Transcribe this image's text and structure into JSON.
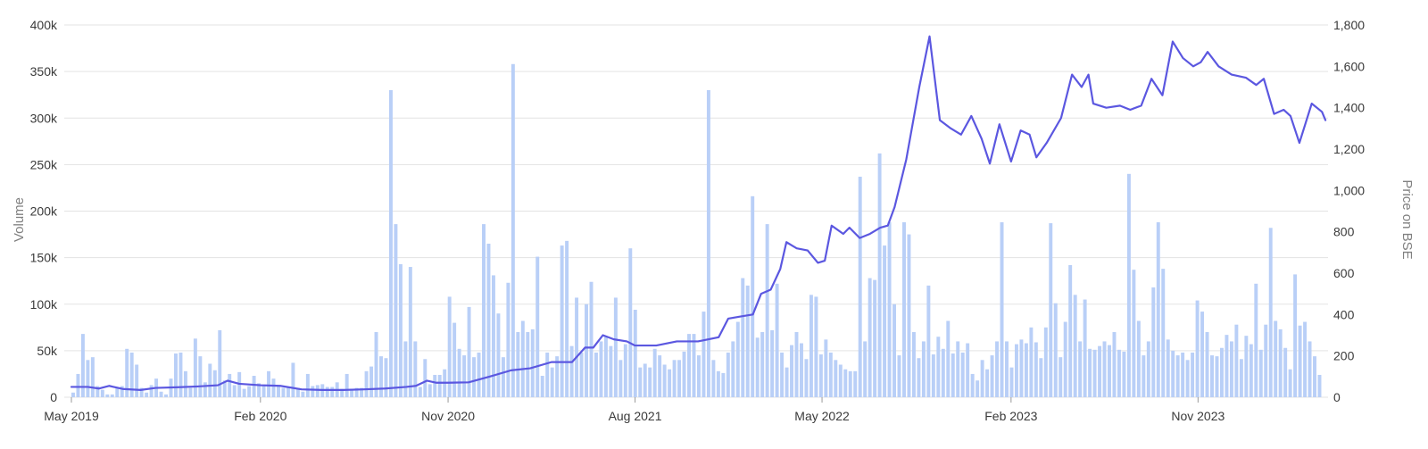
{
  "chart_data": {
    "type": "bar+line",
    "title": "",
    "colors": {
      "volume_bar": "#b9cff7",
      "price_line": "#5b57e0",
      "grid": "#e3e3e3",
      "tick_text": "#3a3a3a",
      "axis_title": "#808080"
    },
    "y_left": {
      "label": "Volume",
      "min": 0,
      "max": 400000,
      "ticks": [
        0,
        50000,
        100000,
        150000,
        200000,
        250000,
        300000,
        350000,
        400000
      ],
      "tick_labels": [
        "0",
        "50k",
        "100k",
        "150k",
        "200k",
        "250k",
        "300k",
        "350k",
        "400k"
      ]
    },
    "y_right": {
      "label": "Price on BSE",
      "min": 0,
      "max": 1800,
      "ticks": [
        0,
        200,
        400,
        600,
        800,
        1000,
        1200,
        1400,
        1600,
        1800
      ],
      "tick_labels": [
        "0",
        "200",
        "400",
        "600",
        "800",
        "1,000",
        "1,200",
        "1,400",
        "1,600",
        "1,800"
      ]
    },
    "x_axis": {
      "start": "2019-05",
      "end": "2024-05",
      "ticks": [
        "2019-05",
        "2020-02",
        "2020-11",
        "2021-08",
        "2022-05",
        "2023-02",
        "2023-11"
      ],
      "tick_labels": [
        "May 2019",
        "Feb 2020",
        "Nov 2020",
        "Aug 2021",
        "May 2022",
        "Feb 2023",
        "Nov 2023"
      ]
    },
    "series": [
      {
        "type": "bar",
        "axis": "left",
        "unit": "weekly",
        "values": [
          5000,
          25000,
          68000,
          40000,
          43000,
          12000,
          8000,
          3000,
          3000,
          10000,
          12000,
          52000,
          48000,
          35000,
          10000,
          5000,
          13000,
          20000,
          6000,
          3000,
          20000,
          47000,
          48000,
          28000,
          10000,
          63000,
          44000,
          16000,
          36000,
          29000,
          72000,
          18000,
          25000,
          13000,
          27000,
          9000,
          12000,
          23000,
          15000,
          12000,
          28000,
          20000,
          13000,
          10000,
          10000,
          37000,
          10000,
          6000,
          25000,
          12000,
          13000,
          14000,
          11000,
          11000,
          16000,
          9000,
          25000,
          9000,
          10000,
          10000,
          28000,
          33000,
          70000,
          44000,
          42000,
          330000,
          186000,
          143000,
          60000,
          140000,
          60000,
          11000,
          41000,
          14000,
          24000,
          24000,
          30000,
          108000,
          80000,
          52000,
          45000,
          97000,
          43000,
          48000,
          186000,
          165000,
          131000,
          90000,
          43000,
          123000,
          358000,
          70000,
          82000,
          70000,
          73000,
          151000,
          23000,
          48000,
          32000,
          44000,
          163000,
          168000,
          55000,
          107000,
          48000,
          100000,
          124000,
          48000,
          60000,
          65000,
          55000,
          107000,
          40000,
          57000,
          160000,
          94000,
          32000,
          36000,
          32000,
          52000,
          45000,
          35000,
          30000,
          40000,
          40000,
          49000,
          68000,
          68000,
          45000,
          92000,
          330000,
          40000,
          28000,
          26000,
          48000,
          60000,
          81000,
          128000,
          120000,
          216000,
          64000,
          70000,
          186000,
          72000,
          122000,
          48000,
          32000,
          56000,
          70000,
          58000,
          41000,
          110000,
          108000,
          46000,
          62000,
          48000,
          40000,
          35000,
          30000,
          28000,
          28000,
          237000,
          60000,
          128000,
          126000,
          262000,
          163000,
          188000,
          100000,
          45000,
          188000,
          175000,
          70000,
          42000,
          60000,
          120000,
          46000,
          65000,
          52000,
          82000,
          47000,
          60000,
          48000,
          58000,
          25000,
          18000,
          40000,
          30000,
          45000,
          60000,
          188000,
          60000,
          32000,
          57000,
          62000,
          58000,
          75000,
          59000,
          42000,
          75000,
          187000,
          101000,
          43000,
          81000,
          142000,
          110000,
          60000,
          105000,
          52000,
          51000,
          55000,
          60000,
          56000,
          70000,
          51000,
          49000,
          240000,
          137000,
          82000,
          45000,
          60000,
          118000,
          188000,
          138000,
          62000,
          50000,
          45000,
          48000,
          40000,
          48000,
          104000,
          92000,
          70000,
          45000,
          44000,
          53000,
          67000,
          60000,
          78000,
          41000,
          66000,
          57000,
          122000,
          51000,
          78000,
          182000,
          82000,
          73000,
          53000,
          30000,
          132000,
          77000,
          81000,
          60000,
          44000,
          24000
        ]
      },
      {
        "type": "line",
        "axis": "right",
        "points": [
          [
            "2019-05-01",
            50
          ],
          [
            "2019-05-25",
            50
          ],
          [
            "2019-06-10",
            42
          ],
          [
            "2019-06-25",
            55
          ],
          [
            "2019-07-15",
            40
          ],
          [
            "2019-08-10",
            35
          ],
          [
            "2019-09-01",
            45
          ],
          [
            "2019-10-01",
            48
          ],
          [
            "2019-11-01",
            52
          ],
          [
            "2019-12-01",
            58
          ],
          [
            "2019-12-15",
            80
          ],
          [
            "2020-01-01",
            65
          ],
          [
            "2020-02-01",
            58
          ],
          [
            "2020-03-01",
            55
          ],
          [
            "2020-04-01",
            38
          ],
          [
            "2020-05-01",
            35
          ],
          [
            "2020-06-01",
            35
          ],
          [
            "2020-07-01",
            38
          ],
          [
            "2020-08-01",
            42
          ],
          [
            "2020-09-01",
            50
          ],
          [
            "2020-09-15",
            55
          ],
          [
            "2020-10-01",
            80
          ],
          [
            "2020-10-15",
            70
          ],
          [
            "2020-11-01",
            70
          ],
          [
            "2020-12-01",
            72
          ],
          [
            "2021-01-01",
            100
          ],
          [
            "2021-02-01",
            130
          ],
          [
            "2021-03-01",
            140
          ],
          [
            "2021-04-01",
            170
          ],
          [
            "2021-05-01",
            170
          ],
          [
            "2021-05-20",
            240
          ],
          [
            "2021-06-01",
            240
          ],
          [
            "2021-06-15",
            300
          ],
          [
            "2021-07-01",
            280
          ],
          [
            "2021-07-20",
            270
          ],
          [
            "2021-08-01",
            250
          ],
          [
            "2021-09-01",
            250
          ],
          [
            "2021-10-01",
            270
          ],
          [
            "2021-11-01",
            270
          ],
          [
            "2021-12-01",
            290
          ],
          [
            "2021-12-15",
            380
          ],
          [
            "2022-01-01",
            390
          ],
          [
            "2022-01-20",
            400
          ],
          [
            "2022-02-01",
            500
          ],
          [
            "2022-02-15",
            520
          ],
          [
            "2022-03-01",
            620
          ],
          [
            "2022-03-10",
            750
          ],
          [
            "2022-03-25",
            720
          ],
          [
            "2022-04-10",
            710
          ],
          [
            "2022-04-25",
            650
          ],
          [
            "2022-05-05",
            660
          ],
          [
            "2022-05-15",
            830
          ],
          [
            "2022-06-01",
            790
          ],
          [
            "2022-06-10",
            820
          ],
          [
            "2022-06-25",
            770
          ],
          [
            "2022-07-10",
            790
          ],
          [
            "2022-07-25",
            820
          ],
          [
            "2022-08-05",
            830
          ],
          [
            "2022-08-15",
            920
          ],
          [
            "2022-09-01",
            1150
          ],
          [
            "2022-09-20",
            1500
          ],
          [
            "2022-10-05",
            1745
          ],
          [
            "2022-10-20",
            1340
          ],
          [
            "2022-11-05",
            1300
          ],
          [
            "2022-11-20",
            1270
          ],
          [
            "2022-12-05",
            1360
          ],
          [
            "2022-12-20",
            1250
          ],
          [
            "2023-01-01",
            1130
          ],
          [
            "2023-01-15",
            1320
          ],
          [
            "2023-02-01",
            1140
          ],
          [
            "2023-02-15",
            1290
          ],
          [
            "2023-02-28",
            1270
          ],
          [
            "2023-03-10",
            1160
          ],
          [
            "2023-03-25",
            1230
          ],
          [
            "2023-04-15",
            1350
          ],
          [
            "2023-05-01",
            1560
          ],
          [
            "2023-05-15",
            1500
          ],
          [
            "2023-05-25",
            1560
          ],
          [
            "2023-06-01",
            1420
          ],
          [
            "2023-06-20",
            1400
          ],
          [
            "2023-07-10",
            1410
          ],
          [
            "2023-07-25",
            1390
          ],
          [
            "2023-08-10",
            1410
          ],
          [
            "2023-08-25",
            1540
          ],
          [
            "2023-09-10",
            1460
          ],
          [
            "2023-09-25",
            1720
          ],
          [
            "2023-10-10",
            1640
          ],
          [
            "2023-10-25",
            1600
          ],
          [
            "2023-11-05",
            1620
          ],
          [
            "2023-11-15",
            1670
          ],
          [
            "2023-12-01",
            1600
          ],
          [
            "2023-12-20",
            1560
          ],
          [
            "2024-01-10",
            1545
          ],
          [
            "2024-01-25",
            1510
          ],
          [
            "2024-02-05",
            1540
          ],
          [
            "2024-02-20",
            1370
          ],
          [
            "2024-03-05",
            1390
          ],
          [
            "2024-03-15",
            1360
          ],
          [
            "2024-03-28",
            1230
          ],
          [
            "2024-04-15",
            1420
          ],
          [
            "2024-04-30",
            1380
          ],
          [
            "2024-05-05",
            1340
          ]
        ]
      }
    ]
  }
}
